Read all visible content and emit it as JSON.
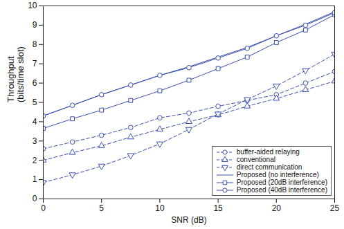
{
  "chart_data": {
    "type": "line",
    "x_label": "SNR (dB)",
    "y_label": "Throughput\n(bits/time slot)",
    "x": [
      0,
      2.5,
      5,
      7.5,
      10,
      12.5,
      15,
      17.5,
      20,
      22.5,
      25
    ],
    "xlim": [
      0,
      25
    ],
    "xticks": [
      0,
      5,
      10,
      15,
      20,
      25
    ],
    "ylim": [
      0,
      10
    ],
    "yticks": [
      0,
      1,
      2,
      3,
      4,
      5,
      6,
      7,
      8,
      9,
      10
    ],
    "grid": false,
    "legend": "lower right",
    "series": [
      {
        "name": "buffer-aided relaying",
        "color": "#3a4fb0",
        "marker": "circle",
        "line_style": "dashed",
        "values": [
          2.6,
          2.95,
          3.3,
          3.7,
          4.2,
          4.45,
          4.8,
          5.1,
          5.4,
          6.0,
          6.6
        ]
      },
      {
        "name": "conventional",
        "color": "#3a4fb0",
        "marker": "triangle",
        "line_style": "dashed",
        "values": [
          2.0,
          2.4,
          2.75,
          3.2,
          3.6,
          4.0,
          4.35,
          4.8,
          5.2,
          5.65,
          6.1
        ]
      },
      {
        "name": "direct communication",
        "color": "#3a4fb0",
        "marker": "triangle-down",
        "line_style": "dashed",
        "values": [
          0.85,
          1.25,
          1.7,
          2.25,
          2.85,
          3.6,
          4.4,
          5.15,
          5.85,
          6.65,
          7.5
        ]
      },
      {
        "name": "Proposed (no interference)",
        "color": "#3a4fb0",
        "marker": "none",
        "line_style": "solid",
        "values": [
          4.3,
          4.85,
          5.4,
          5.9,
          6.4,
          6.85,
          7.35,
          7.85,
          8.45,
          9.05,
          9.7
        ]
      },
      {
        "name": "Proposed (20dB interference)",
        "color": "#3a4fb0",
        "marker": "square",
        "line_style": "solid",
        "values": [
          3.65,
          4.15,
          4.6,
          5.1,
          5.6,
          6.15,
          6.75,
          7.35,
          8.1,
          8.75,
          9.55
        ]
      },
      {
        "name": "Proposed (40dB interference)",
        "color": "#3a4fb0",
        "marker": "circle",
        "line_style": "solid",
        "values": [
          4.3,
          4.85,
          5.4,
          5.9,
          6.4,
          6.8,
          7.3,
          7.8,
          8.45,
          9.0,
          9.65
        ]
      }
    ]
  }
}
